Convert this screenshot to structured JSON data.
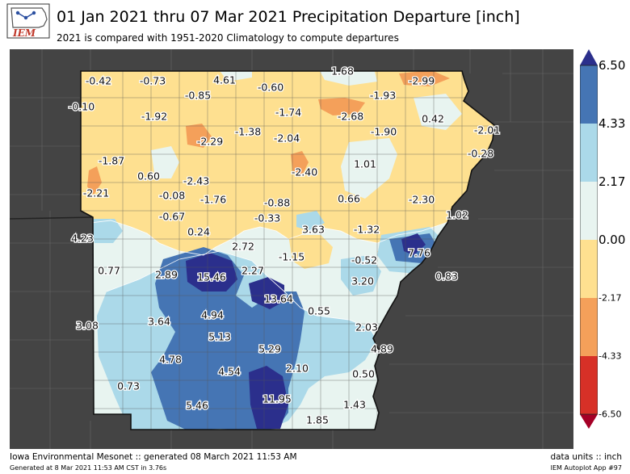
{
  "logo": {
    "text": "IEM"
  },
  "title": "01 Jan 2021 thru 07 Mar 2021 Precipitation Departure [inch]",
  "subtitle": "2021 is compared with 1951-2020 Climatology to compute departures",
  "colorbar": {
    "labels": [
      {
        "text": "6.50",
        "value": 6.5,
        "size": "big"
      },
      {
        "text": "4.33",
        "value": 4.33,
        "size": "big"
      },
      {
        "text": "2.17",
        "value": 2.17,
        "size": "big"
      },
      {
        "text": "0.00",
        "value": 0.0,
        "size": "big"
      },
      {
        "text": "-2.17",
        "value": -2.17,
        "size": "small"
      },
      {
        "text": "-4.33",
        "value": -4.33,
        "size": "small"
      },
      {
        "text": "-6.50",
        "value": -6.5,
        "size": "small"
      }
    ],
    "colors": {
      "dark_blue": "#2b2f8c",
      "blue": "#4575b4",
      "light_blue": "#abd9e9",
      "pale": "#e8f4f0",
      "light_orange": "#fee090",
      "orange": "#f4a05a",
      "red": "#d73027"
    }
  },
  "stations": [
    {
      "text": "-0.42"
    },
    {
      "text": "-0.73"
    },
    {
      "text": "4.61"
    },
    {
      "text": "-0.60"
    },
    {
      "text": "1.68"
    },
    {
      "text": "-2.99"
    },
    {
      "text": "-0.10"
    },
    {
      "text": "-0.85"
    },
    {
      "text": "-1.93"
    },
    {
      "text": "-1.92"
    },
    {
      "text": "-1.74"
    },
    {
      "text": "-2.68"
    },
    {
      "text": "0.42"
    },
    {
      "text": "-1.38"
    },
    {
      "text": "-2.04"
    },
    {
      "text": "-1.90"
    },
    {
      "text": "-2.01"
    },
    {
      "text": "-2.29"
    },
    {
      "text": "-0.28"
    },
    {
      "text": "-1.87"
    },
    {
      "text": "1.01"
    },
    {
      "text": "-2.40"
    },
    {
      "text": "-2.43"
    },
    {
      "text": "0.60"
    },
    {
      "text": "-2.21"
    },
    {
      "text": "-0.08"
    },
    {
      "text": "-1.76"
    },
    {
      "text": "-0.88"
    },
    {
      "text": "0.66"
    },
    {
      "text": "-2.30"
    },
    {
      "text": "-0.67"
    },
    {
      "text": "-0.33"
    },
    {
      "text": "1.02"
    },
    {
      "text": "4.23"
    },
    {
      "text": "3.63"
    },
    {
      "text": "-1.32"
    },
    {
      "text": "0.24"
    },
    {
      "text": "2.72"
    },
    {
      "text": "7.76"
    },
    {
      "text": "-1.15"
    },
    {
      "text": "-0.52"
    },
    {
      "text": "0.77"
    },
    {
      "text": "2.89"
    },
    {
      "text": "15.46"
    },
    {
      "text": "2.27"
    },
    {
      "text": "0.83"
    },
    {
      "text": "3.20"
    },
    {
      "text": "13.64"
    },
    {
      "text": "0.55"
    },
    {
      "text": "4.94"
    },
    {
      "text": "3.08"
    },
    {
      "text": "3.64"
    },
    {
      "text": "2.03"
    },
    {
      "text": "5.13"
    },
    {
      "text": "5.29"
    },
    {
      "text": "4.89"
    },
    {
      "text": "4.78"
    },
    {
      "text": "4.54"
    },
    {
      "text": "2.10"
    },
    {
      "text": "0.50"
    },
    {
      "text": "0.73"
    },
    {
      "text": "11.95"
    },
    {
      "text": "1.43"
    },
    {
      "text": "5.46"
    },
    {
      "text": "1.85"
    }
  ],
  "footer": {
    "left": "Iowa Environmental Mesonet :: generated 08 March 2021 11:53 AM",
    "left_small": "Generated at 8 Mar 2021 11:53 AM CST in 3.76s",
    "right": "data units :: inch",
    "right_small": "IEM Autoplot App #97"
  }
}
